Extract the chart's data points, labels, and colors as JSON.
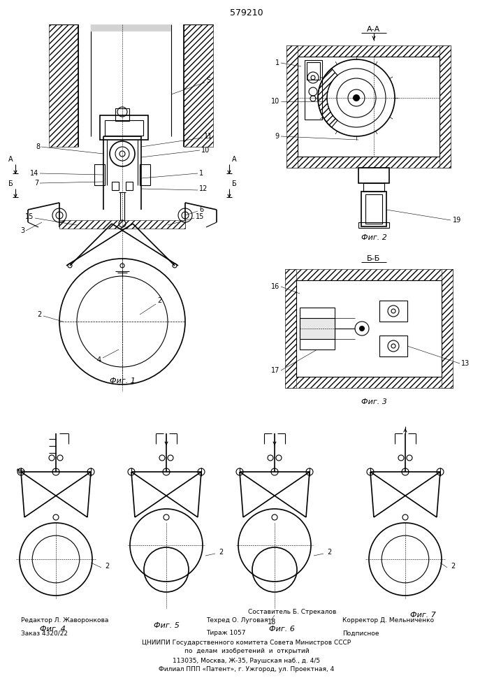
{
  "title": "579210",
  "background_color": "#ffffff",
  "fig1_label": "Фиг. 1",
  "fig2_label": "Фиг. 2",
  "fig3_label": "Фиг. 3",
  "fig4_label": "Фиг. 4",
  "fig5_label": "Фиг. 5",
  "fig6_label": "Фиг. 6",
  "fig7_label": "Фиг. 7",
  "section_aa": "А-А",
  "section_bb": "Б-Б",
  "footer_editor": "Редактор Л. Жаворонкова",
  "footer_author": "Составитель Б. Стрекалов",
  "footer_tech": "Техред О. Луговая",
  "footer_corrector": "Корректор Д. Мельниченко",
  "footer_order": "Заказ 4320/22",
  "footer_print": "Тираж 1057",
  "footer_sign": "Подписное",
  "footer_org": "ЦНИИПИ Государственного комитета Совета Министров СССР",
  "footer_affairs": "по  делам  изобретений  и  открытий",
  "footer_addr": "113035, Москва, Ж-35, Раушская наб., д. 4/5",
  "footer_branch": "Филиал ППП «Патент», г. Ужгород, ул. Проектная, 4"
}
